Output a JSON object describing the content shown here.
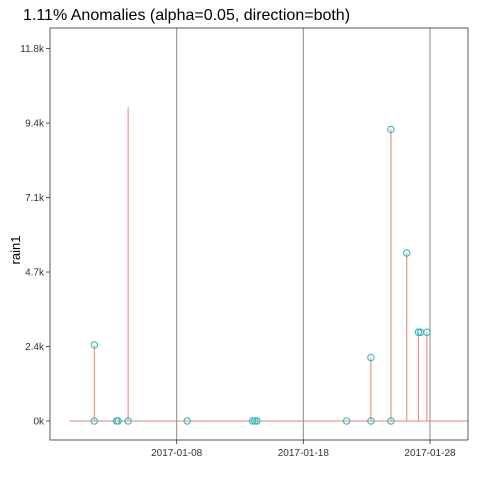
{
  "chart_data": {
    "type": "line",
    "title": "1.11% Anomalies (alpha=0.05, direction=both)",
    "xlabel": "",
    "ylabel": "rain1",
    "x_range": [
      "2016-12-29",
      "2017-01-31"
    ],
    "ylim": [
      -600,
      12400
    ],
    "y_ticks": [
      {
        "value": 0,
        "label": "0k"
      },
      {
        "value": 2350,
        "label": "2.4k"
      },
      {
        "value": 4700,
        "label": "4.7k"
      },
      {
        "value": 7050,
        "label": "7.1k"
      },
      {
        "value": 9400,
        "label": "9.4k"
      },
      {
        "value": 11750,
        "label": "11.8k"
      }
    ],
    "x_ticks": [
      {
        "date": "2017-01-08",
        "label": "2017-01-08"
      },
      {
        "date": "2017-01-18",
        "label": "2017-01-18"
      },
      {
        "date": "2017-01-28",
        "label": "2017-01-28"
      }
    ],
    "grid": true,
    "series": [
      {
        "color": "#e8806f",
        "points": [
          {
            "x": "2016-12-30T12:00",
            "y": 0
          },
          {
            "x": "2017-01-01T12:00",
            "y": 0
          },
          {
            "x": "2017-01-01T12:00",
            "y": 2400
          },
          {
            "x": "2017-01-01T12:00",
            "y": 0
          },
          {
            "x": "2017-01-04T04:00",
            "y": 0
          },
          {
            "x": "2017-01-04T04:00",
            "y": 9900
          },
          {
            "x": "2017-01-04T04:00",
            "y": 0
          },
          {
            "x": "2017-01-23T08:00",
            "y": 0
          },
          {
            "x": "2017-01-23T08:00",
            "y": 2000
          },
          {
            "x": "2017-01-23T08:00",
            "y": 0
          },
          {
            "x": "2017-01-24T22:00",
            "y": 0
          },
          {
            "x": "2017-01-24T22:00",
            "y": 9200
          },
          {
            "x": "2017-01-24T22:00",
            "y": 0
          },
          {
            "x": "2017-01-26T04:00",
            "y": 0
          },
          {
            "x": "2017-01-26T04:00",
            "y": 5300
          },
          {
            "x": "2017-01-26T04:00",
            "y": 0
          },
          {
            "x": "2017-01-27T02:00",
            "y": 0
          },
          {
            "x": "2017-01-27T02:00",
            "y": 2800
          },
          {
            "x": "2017-01-27T02:00",
            "y": 0
          },
          {
            "x": "2017-01-27T18:00",
            "y": 0
          },
          {
            "x": "2017-01-27T18:00",
            "y": 2800
          },
          {
            "x": "2017-01-27T18:00",
            "y": 0
          },
          {
            "x": "2017-01-31T00:00",
            "y": 0
          }
        ]
      }
    ],
    "anomaly_points": {
      "color": "#22b5c4",
      "points": [
        {
          "x": "2017-01-01T12:00",
          "y": 2400
        },
        {
          "x": "2017-01-01T12:00",
          "y": 0
        },
        {
          "x": "2017-01-03T06:00",
          "y": 0
        },
        {
          "x": "2017-01-03T09:00",
          "y": 0
        },
        {
          "x": "2017-01-04T04:00",
          "y": 0
        },
        {
          "x": "2017-01-08T20:00",
          "y": 0
        },
        {
          "x": "2017-01-14T00:00",
          "y": 0
        },
        {
          "x": "2017-01-14T04:00",
          "y": 0
        },
        {
          "x": "2017-01-14T08:00",
          "y": 0
        },
        {
          "x": "2017-01-21T10:00",
          "y": 0
        },
        {
          "x": "2017-01-23T08:00",
          "y": 2000
        },
        {
          "x": "2017-01-23T08:00",
          "y": 0
        },
        {
          "x": "2017-01-24T22:00",
          "y": 9200
        },
        {
          "x": "2017-01-24T22:00",
          "y": 0
        },
        {
          "x": "2017-01-26T04:00",
          "y": 5300
        },
        {
          "x": "2017-01-27T02:00",
          "y": 2800
        },
        {
          "x": "2017-01-27T06:00",
          "y": 2800
        },
        {
          "x": "2017-01-27T18:00",
          "y": 2800
        }
      ]
    }
  }
}
